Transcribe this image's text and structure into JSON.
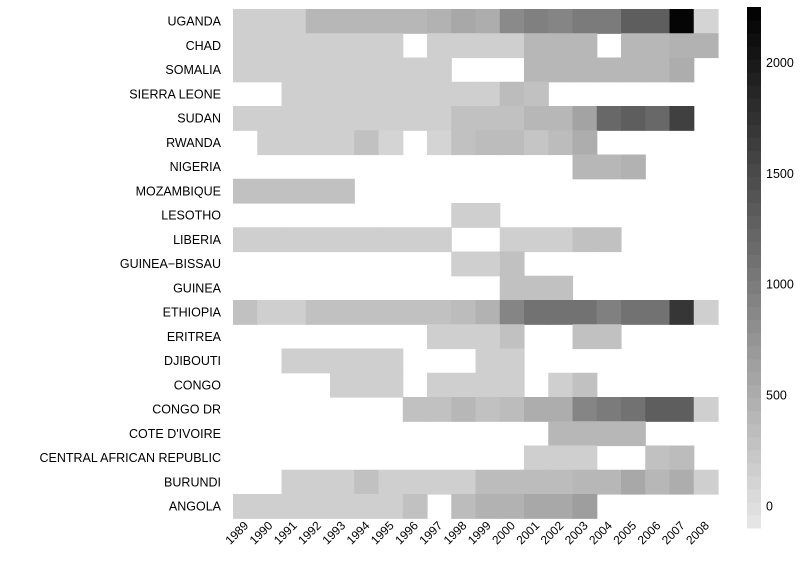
{
  "chart_data": {
    "type": "heatmap",
    "title": "",
    "xlabel": "",
    "ylabel": "",
    "x": [
      "1989",
      "1990",
      "1991",
      "1992",
      "1993",
      "1994",
      "1995",
      "1996",
      "1997",
      "1998",
      "1999",
      "2000",
      "2001",
      "2002",
      "2003",
      "2004",
      "2005",
      "2006",
      "2007",
      "2008"
    ],
    "y": [
      "UGANDA",
      "CHAD",
      "SOMALIA",
      "SIERRA LEONE",
      "SUDAN",
      "RWANDA",
      "NIGERIA",
      "MOZAMBIQUE",
      "LESOTHO",
      "LIBERIA",
      "GUINEA−BISSAU",
      "GUINEA",
      "ETHIOPIA",
      "ERITREA",
      "DJIBOUTI",
      "CONGO",
      "CONGO DR",
      "COTE D'IVOIRE",
      "CENTRAL AFRICAN REPUBLIC",
      "BURUNDI",
      "ANGOLA"
    ],
    "z": [
      [
        150,
        150,
        150,
        400,
        400,
        400,
        400,
        400,
        450,
        550,
        500,
        850,
        950,
        900,
        1000,
        1000,
        1300,
        1300,
        2200,
        100
      ],
      [
        150,
        150,
        150,
        150,
        150,
        150,
        150,
        null,
        150,
        150,
        150,
        150,
        400,
        400,
        400,
        null,
        400,
        400,
        450,
        450
      ],
      [
        150,
        150,
        150,
        150,
        150,
        150,
        150,
        150,
        150,
        null,
        null,
        null,
        400,
        400,
        400,
        400,
        400,
        400,
        500,
        null
      ],
      [
        null,
        null,
        150,
        150,
        150,
        150,
        150,
        150,
        150,
        150,
        150,
        350,
        300,
        null,
        null,
        null,
        null,
        null,
        null,
        null
      ],
      [
        150,
        150,
        150,
        150,
        150,
        150,
        150,
        150,
        150,
        300,
        300,
        300,
        400,
        400,
        600,
        1200,
        1300,
        1200,
        1600,
        null
      ],
      [
        null,
        150,
        150,
        150,
        150,
        300,
        100,
        null,
        100,
        300,
        350,
        350,
        250,
        350,
        500,
        null,
        null,
        null,
        null,
        null
      ],
      [
        null,
        null,
        null,
        null,
        null,
        null,
        null,
        null,
        null,
        null,
        null,
        null,
        null,
        null,
        400,
        400,
        450,
        null,
        null,
        null
      ],
      [
        300,
        300,
        300,
        300,
        300,
        null,
        null,
        null,
        null,
        null,
        null,
        null,
        null,
        null,
        null,
        null,
        null,
        null,
        null,
        null
      ],
      [
        null,
        null,
        null,
        null,
        null,
        null,
        null,
        null,
        null,
        150,
        150,
        null,
        null,
        null,
        null,
        null,
        null,
        null,
        null,
        null
      ],
      [
        150,
        150,
        150,
        150,
        150,
        150,
        150,
        150,
        150,
        null,
        null,
        150,
        150,
        150,
        300,
        300,
        null,
        null,
        null,
        null
      ],
      [
        null,
        null,
        null,
        null,
        null,
        null,
        null,
        null,
        null,
        150,
        150,
        300,
        null,
        null,
        null,
        null,
        null,
        null,
        null,
        null
      ],
      [
        null,
        null,
        null,
        null,
        null,
        null,
        null,
        null,
        null,
        null,
        null,
        300,
        300,
        300,
        null,
        null,
        null,
        null,
        null,
        null
      ],
      [
        300,
        150,
        150,
        300,
        300,
        300,
        300,
        300,
        300,
        350,
        450,
        900,
        1100,
        1100,
        1100,
        950,
        1100,
        1100,
        1700,
        150
      ],
      [
        null,
        null,
        null,
        null,
        null,
        null,
        null,
        null,
        150,
        150,
        150,
        300,
        null,
        null,
        300,
        300,
        null,
        null,
        null,
        null
      ],
      [
        null,
        null,
        150,
        150,
        150,
        150,
        150,
        null,
        null,
        null,
        150,
        150,
        null,
        null,
        null,
        null,
        null,
        null,
        null,
        null
      ],
      [
        null,
        null,
        null,
        null,
        150,
        150,
        150,
        null,
        150,
        150,
        150,
        150,
        null,
        150,
        300,
        null,
        null,
        null,
        null,
        null
      ],
      [
        null,
        null,
        null,
        null,
        null,
        null,
        null,
        300,
        300,
        400,
        300,
        350,
        500,
        500,
        900,
        1000,
        1100,
        1300,
        1300,
        150
      ],
      [
        null,
        null,
        null,
        null,
        null,
        null,
        null,
        null,
        null,
        null,
        null,
        null,
        null,
        400,
        400,
        400,
        400,
        null,
        null,
        null
      ],
      [
        null,
        null,
        null,
        null,
        null,
        null,
        null,
        null,
        null,
        null,
        null,
        null,
        150,
        150,
        150,
        null,
        null,
        300,
        350,
        null
      ],
      [
        null,
        null,
        150,
        150,
        150,
        300,
        150,
        150,
        150,
        150,
        350,
        350,
        350,
        350,
        400,
        400,
        550,
        400,
        500,
        150
      ],
      [
        150,
        150,
        150,
        150,
        150,
        150,
        150,
        300,
        null,
        350,
        450,
        450,
        550,
        550,
        650,
        null,
        null,
        null,
        null,
        null
      ]
    ],
    "colorbar": {
      "min": -100,
      "max": 2250,
      "ticks": [
        0,
        500,
        1000,
        1500,
        2000
      ],
      "low_color": "#e8e8e8",
      "high_color": "#000000"
    },
    "missing_color": "#ffffff",
    "grid": false
  }
}
